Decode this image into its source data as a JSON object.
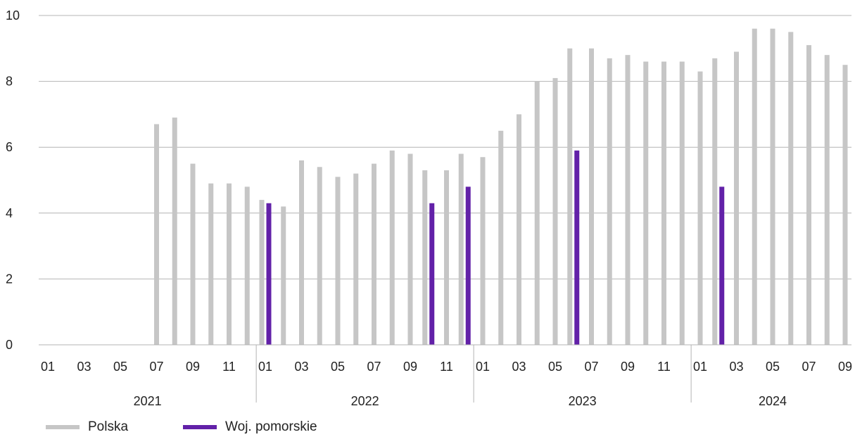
{
  "chart_data": {
    "type": "bar",
    "title": "",
    "xlabel": "",
    "ylabel": "",
    "ylim": [
      0,
      10
    ],
    "yticks": [
      "0",
      "2",
      "4",
      "6",
      "8",
      "10"
    ],
    "grid": true,
    "legend_position": "bottom-left",
    "categories": [
      "2021-01",
      "2021-02",
      "2021-03",
      "2021-04",
      "2021-05",
      "2021-06",
      "2021-07",
      "2021-08",
      "2021-09",
      "2021-10",
      "2021-11",
      "2021-12",
      "2022-01",
      "2022-02",
      "2022-03",
      "2022-04",
      "2022-05",
      "2022-06",
      "2022-07",
      "2022-08",
      "2022-09",
      "2022-10",
      "2022-11",
      "2022-12",
      "2023-01",
      "2023-02",
      "2023-03",
      "2023-04",
      "2023-05",
      "2023-06",
      "2023-07",
      "2023-08",
      "2023-09",
      "2023-10",
      "2023-11",
      "2023-12",
      "2024-01",
      "2024-02",
      "2024-03",
      "2024-04",
      "2024-05",
      "2024-06",
      "2024-07",
      "2024-08",
      "2024-09"
    ],
    "month_tick_labels": [
      "01",
      "",
      "03",
      "",
      "05",
      "",
      "07",
      "",
      "09",
      "",
      "11",
      ""
    ],
    "year_labels": [
      "2021",
      "2022",
      "2023",
      "2024"
    ],
    "series": [
      {
        "name": "Polska",
        "color": "#c6c6c6",
        "values": [
          null,
          null,
          null,
          null,
          null,
          null,
          6.7,
          6.9,
          5.5,
          4.9,
          4.9,
          4.8,
          4.4,
          4.2,
          5.6,
          5.4,
          5.1,
          5.2,
          5.5,
          5.9,
          5.8,
          5.3,
          5.3,
          5.8,
          5.7,
          6.5,
          7.0,
          8.0,
          8.1,
          9.0,
          9.0,
          8.7,
          8.8,
          8.6,
          8.6,
          8.6,
          8.3,
          8.7,
          8.9,
          9.6,
          9.6,
          9.5,
          9.1,
          8.8,
          8.5
        ]
      },
      {
        "name": "Woj. pomorskie",
        "color": "#6221a8",
        "values": [
          null,
          null,
          null,
          null,
          null,
          null,
          null,
          null,
          null,
          null,
          null,
          null,
          4.3,
          null,
          null,
          null,
          null,
          null,
          null,
          null,
          null,
          4.3,
          null,
          4.8,
          null,
          null,
          null,
          null,
          null,
          5.9,
          null,
          null,
          null,
          null,
          null,
          null,
          null,
          4.8,
          null,
          null,
          null,
          null,
          null,
          null,
          null
        ]
      }
    ]
  }
}
